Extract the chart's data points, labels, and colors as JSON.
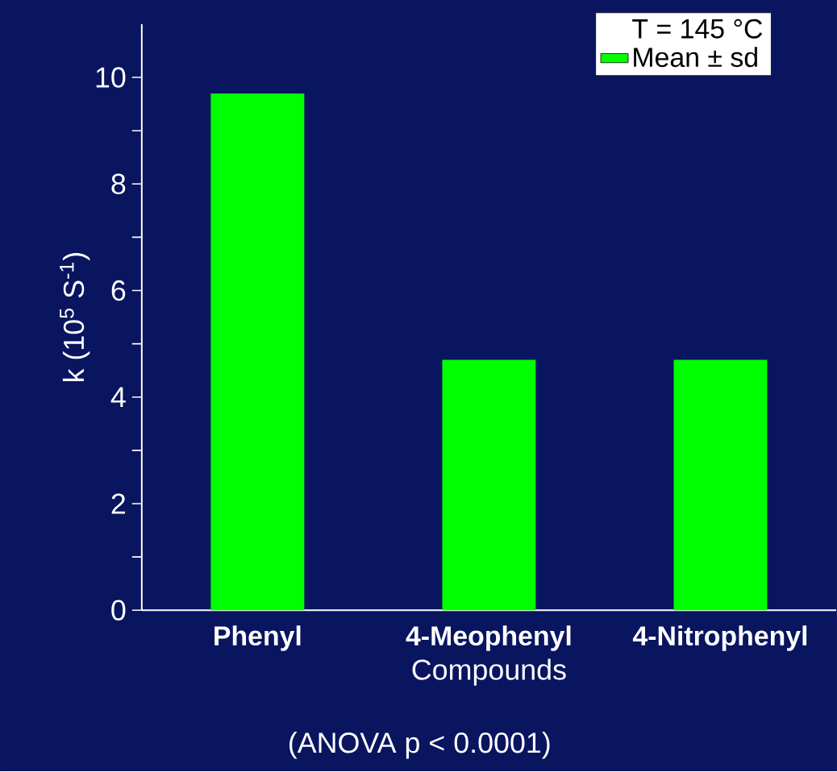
{
  "chart_data": {
    "type": "bar",
    "categories": [
      "Phenyl",
      "4-Meophenyl",
      "4-Nitrophenyl"
    ],
    "series": [
      {
        "name": "Mean ± sd",
        "color": "#00ff00",
        "values": [
          9.7,
          4.7,
          4.7
        ]
      }
    ],
    "ylim": [
      0,
      11
    ],
    "yticks": [
      0,
      {
        "value": 1,
        "label": null
      },
      2,
      {
        "value": 3,
        "label": null
      },
      4,
      {
        "value": 5,
        "label": null
      },
      6,
      {
        "value": 7,
        "label": null
      },
      8,
      {
        "value": 9,
        "label": null
      },
      10
    ],
    "xlabel": "Compounds",
    "ylabel": "k (10$^{5}$ S$^{-1}$)",
    "legend_title": "T = 145 °C",
    "legend": "top right",
    "annotations": [
      "(ANOVA p < 0.0001)"
    ]
  }
}
